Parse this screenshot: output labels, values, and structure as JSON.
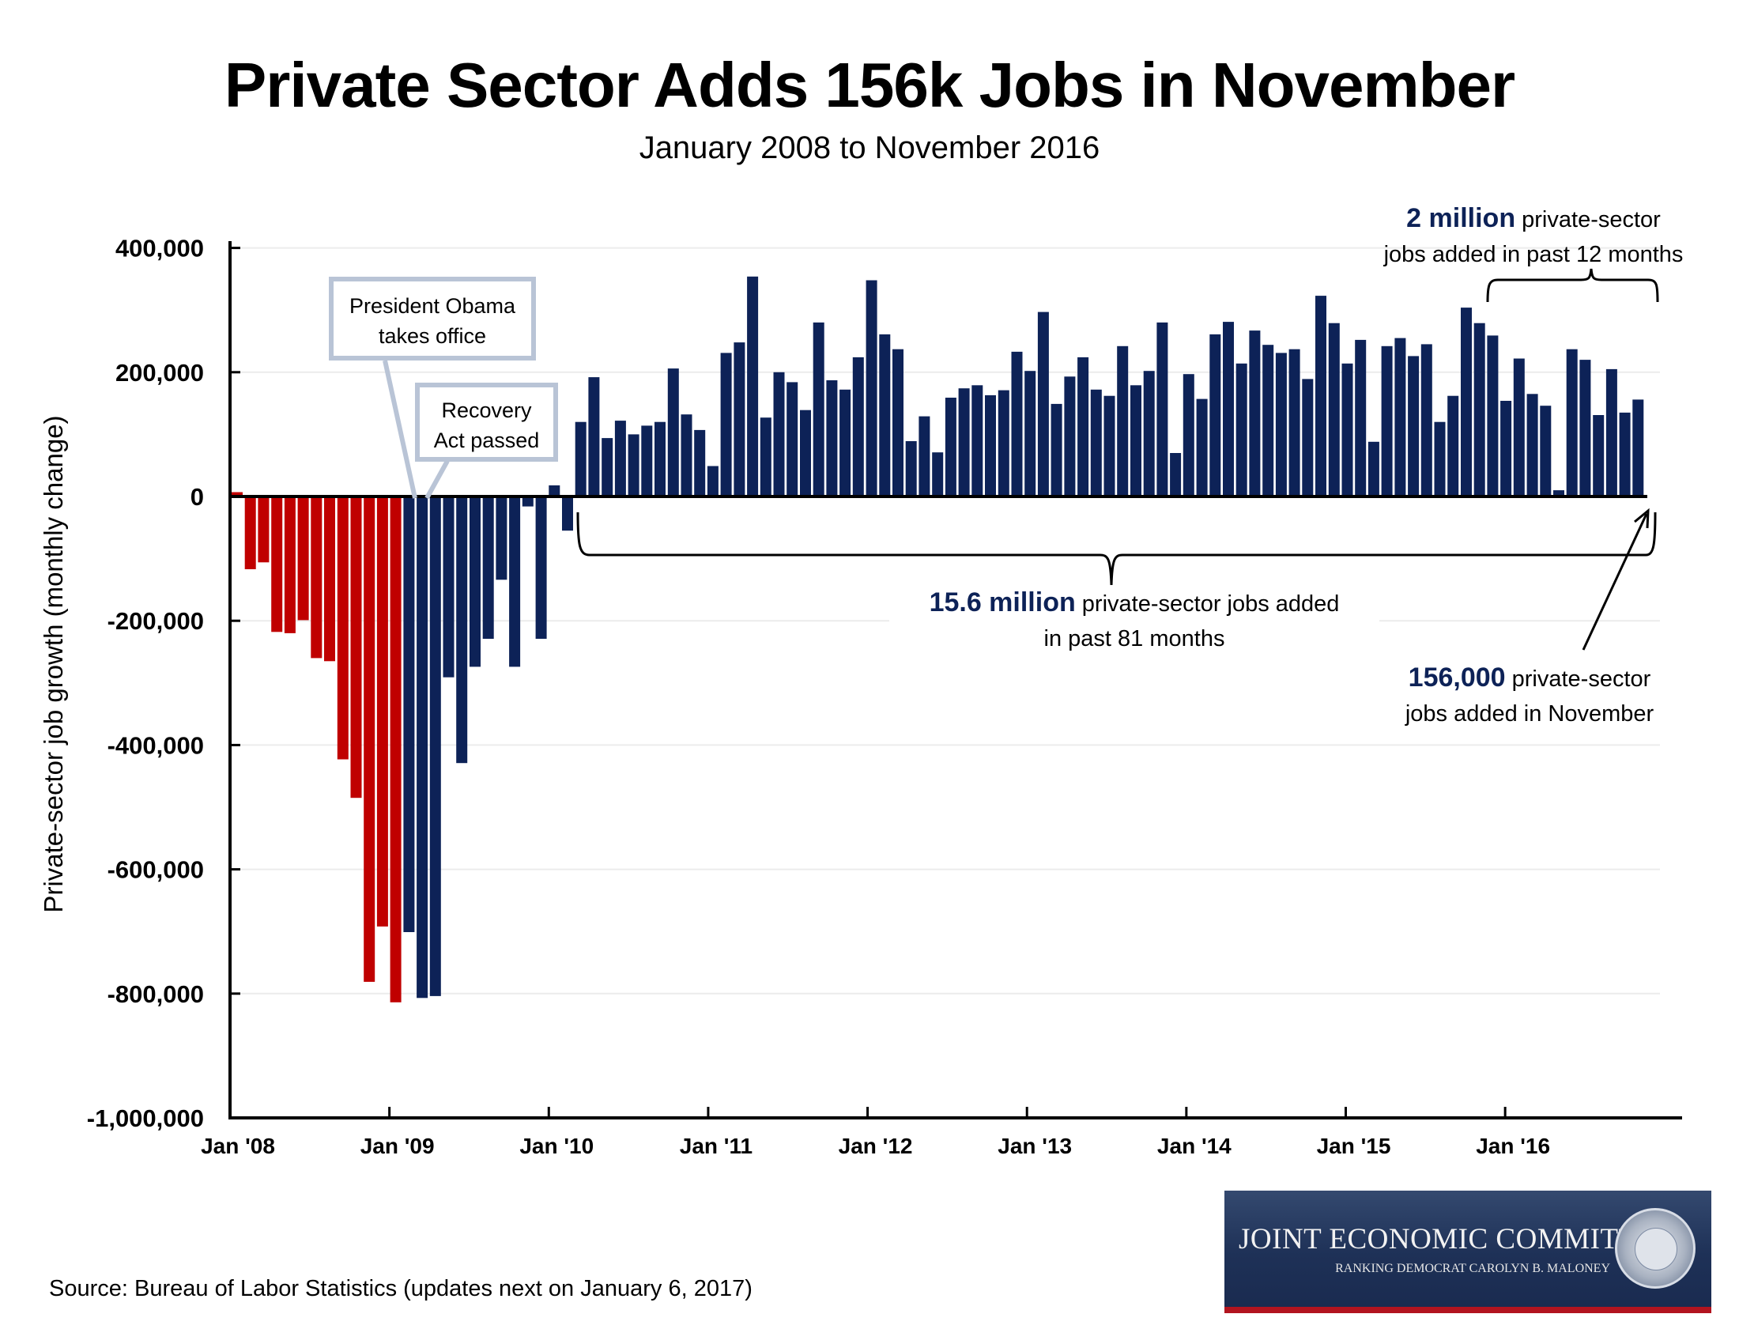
{
  "header": {
    "title": "Private Sector Adds 156k Jobs in November",
    "subtitle": "January 2008 to November 2016"
  },
  "colors": {
    "pre_obama": "#c00000",
    "obama": "#0d2257",
    "callout_border": "#b9c4d6",
    "highlight_text": "#0d2257"
  },
  "chart_data": {
    "type": "bar",
    "title": "Private Sector Adds 156k Jobs in November",
    "subtitle": "January 2008 to November 2016",
    "xlabel": "",
    "ylabel": "Private-sector job growth (monthly change)",
    "ylim": [
      -1000000,
      400000
    ],
    "yticks": [
      400000,
      200000,
      0,
      -200000,
      -400000,
      -600000,
      -800000,
      -1000000
    ],
    "ytick_labels": [
      "400,000",
      "200,000",
      "0",
      "-200,000",
      "-400,000",
      "-600,000",
      "-800,000",
      "-1,000,000"
    ],
    "xtick_labels": [
      "Jan '08",
      "Jan '09",
      "Jan '10",
      "Jan '11",
      "Jan '12",
      "Jan '13",
      "Jan '14",
      "Jan '15",
      "Jan '16"
    ],
    "grid": "horizontal",
    "start_month": "2008-01",
    "end_month": "2016-11",
    "color_split_note": "red through Jan 2009, blue from Feb 2009",
    "red_count": 13,
    "values": [
      7000,
      -117000,
      -106000,
      -218000,
      -220000,
      -199000,
      -260000,
      -265000,
      -423000,
      -485000,
      -781000,
      -692000,
      -814000,
      -701000,
      -807000,
      -804000,
      -291000,
      -429000,
      -274000,
      -229000,
      -134000,
      -274000,
      -16000,
      -229000,
      18000,
      -55000,
      120000,
      192000,
      94000,
      122000,
      100000,
      114000,
      120000,
      206000,
      132000,
      107000,
      49000,
      231000,
      248000,
      354000,
      127000,
      200000,
      184000,
      139000,
      280000,
      187000,
      172000,
      224000,
      348000,
      261000,
      237000,
      89000,
      129000,
      71000,
      159000,
      174000,
      179000,
      163000,
      171000,
      233000,
      202000,
      297000,
      149000,
      193000,
      224000,
      172000,
      162000,
      242000,
      179000,
      202000,
      280000,
      70000,
      197000,
      157000,
      261000,
      281000,
      214000,
      267000,
      244000,
      231000,
      237000,
      189000,
      323000,
      279000,
      214000,
      252000,
      88000,
      242000,
      255000,
      226000,
      245000,
      120000,
      162000,
      304000,
      279000,
      259000,
      154000,
      222000,
      165000,
      146000,
      10000,
      237000,
      220000,
      131000,
      205000,
      135000,
      156000
    ]
  },
  "annotations": {
    "obama_callout": [
      "President Obama",
      "takes office"
    ],
    "recovery_callout": [
      "Recovery",
      "Act passed"
    ],
    "twelve_month": {
      "bold": "2 million",
      "rest": " private-sector",
      "line2": "jobs added in past 12 months"
    },
    "eighty_one_month": {
      "bold": "15.6 million",
      "rest": " private-sector jobs added",
      "line2": "in past 81 months"
    },
    "november": {
      "bold": "156,000",
      "rest": " private-sector",
      "line2": "jobs added in November"
    }
  },
  "footer": {
    "source": "Source: Bureau of Labor Statistics (updates next on January 6, 2017)",
    "logo_main": "JOINT ECONOMIC COMMITTEE",
    "logo_sub": "RANKING DEMOCRAT CAROLYN B. MALONEY"
  }
}
